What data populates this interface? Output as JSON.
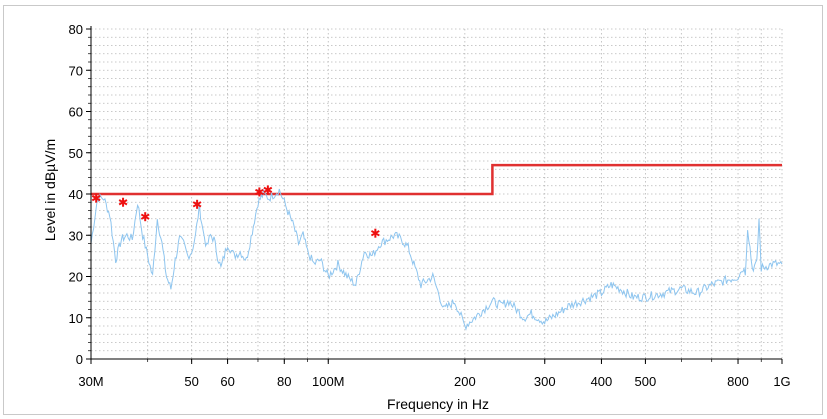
{
  "chart_data": {
    "type": "line",
    "title": "",
    "xlabel": "Frequency in Hz",
    "ylabel": "Level in dBµV/m",
    "x_scale": "log",
    "xlim": [
      30000000,
      1000000000
    ],
    "ylim": [
      0,
      80
    ],
    "grid": true,
    "x_ticks": [
      {
        "value": 30000000,
        "label": "30M"
      },
      {
        "value": 50000000,
        "label": "50"
      },
      {
        "value": 60000000,
        "label": "60"
      },
      {
        "value": 80000000,
        "label": "80"
      },
      {
        "value": 100000000,
        "label": "100M"
      },
      {
        "value": 200000000,
        "label": "200"
      },
      {
        "value": 300000000,
        "label": "300"
      },
      {
        "value": 400000000,
        "label": "400"
      },
      {
        "value": 500000000,
        "label": "500"
      },
      {
        "value": 800000000,
        "label": "800"
      },
      {
        "value": 1000000000,
        "label": "1G"
      }
    ],
    "y_ticks": [
      0,
      10,
      20,
      30,
      40,
      50,
      60,
      70,
      80
    ],
    "colors": {
      "limit": "#e03030",
      "measurement": "#8ec5ef",
      "markers": "#ee1111",
      "grid": "#b8b8b8"
    },
    "limit_line": {
      "x": [
        30000000,
        230000000,
        230000000,
        1000000000
      ],
      "y": [
        40,
        40,
        47,
        47
      ]
    },
    "measurement": {
      "x": [
        30000000,
        31000000,
        32000000,
        33000000,
        34000000,
        35000000,
        36000000,
        37000000,
        38000000,
        39000000,
        40000000,
        41000000,
        42000000,
        43000000,
        44000000,
        45000000,
        46000000,
        47000000,
        48000000,
        49000000,
        50000000,
        51000000,
        52000000,
        53000000,
        54000000,
        55000000,
        56000000,
        57000000,
        58000000,
        60000000,
        62000000,
        64000000,
        66000000,
        68000000,
        70000000,
        72000000,
        74000000,
        76000000,
        78000000,
        80000000,
        82000000,
        84000000,
        86000000,
        88000000,
        90000000,
        93000000,
        96000000,
        100000000,
        105000000,
        110000000,
        115000000,
        120000000,
        125000000,
        130000000,
        135000000,
        140000000,
        145000000,
        150000000,
        160000000,
        170000000,
        180000000,
        190000000,
        200000000,
        210000000,
        220000000,
        230000000,
        240000000,
        250000000,
        260000000,
        270000000,
        280000000,
        300000000,
        320000000,
        340000000,
        360000000,
        380000000,
        400000000,
        420000000,
        440000000,
        470000000,
        500000000,
        550000000,
        600000000,
        650000000,
        700000000,
        750000000,
        800000000,
        820000000,
        830000000,
        840000000,
        860000000,
        880000000,
        890000000,
        900000000,
        950000000,
        1000000000
      ],
      "y": [
        28,
        39,
        39,
        35,
        24,
        29,
        30,
        29,
        38,
        30,
        25,
        20,
        34,
        28,
        20,
        17,
        24,
        29,
        28,
        25,
        26,
        30,
        37,
        31,
        27,
        30,
        29,
        25,
        22,
        28,
        25,
        26,
        24,
        31,
        38,
        40,
        39,
        40,
        41,
        38,
        35,
        32,
        28,
        30,
        26,
        23,
        24,
        20,
        23,
        20,
        18,
        26,
        25,
        28,
        29,
        30,
        29,
        27,
        18,
        20,
        12,
        14,
        8,
        10,
        12,
        14,
        13,
        14,
        12,
        10,
        11,
        9,
        11,
        13,
        14,
        15,
        16,
        18,
        17,
        15,
        15,
        16,
        17,
        16,
        18,
        19,
        20,
        22,
        21,
        32,
        22,
        23,
        34,
        22,
        23,
        23
      ]
    },
    "peaks": {
      "x": [
        30800000,
        35300000,
        39500000,
        51400000,
        70500000,
        73600000,
        127000000
      ],
      "y": [
        39,
        38,
        34.5,
        37.5,
        40.5,
        41,
        30.5
      ]
    }
  }
}
